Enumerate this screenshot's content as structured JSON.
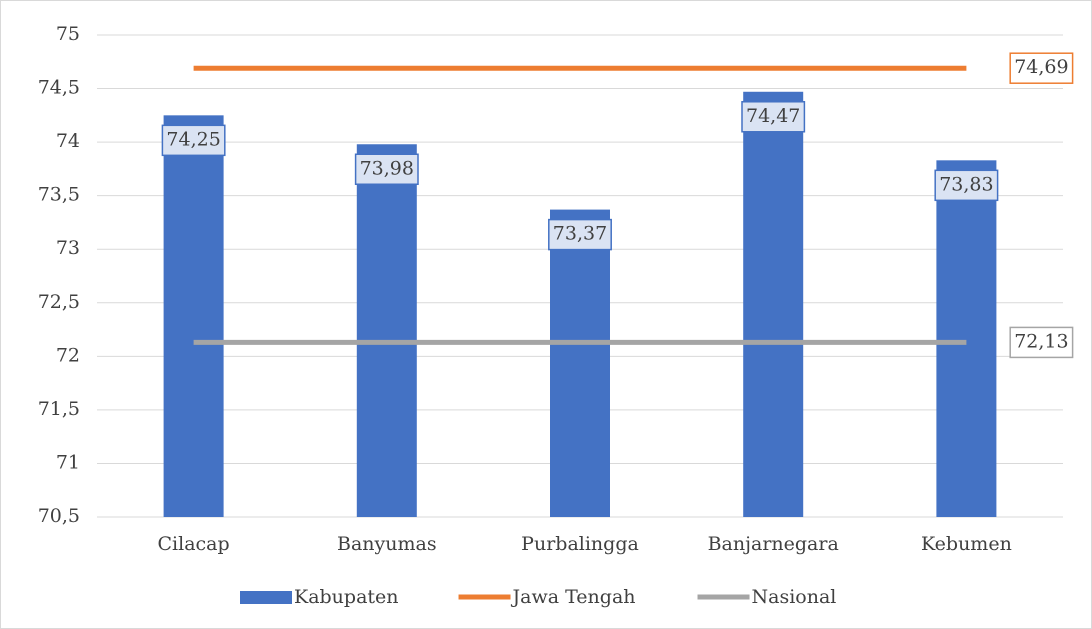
{
  "chart_data": {
    "type": "bar",
    "categories": [
      "Cilacap",
      "Banyumas",
      "Purbalingga",
      "Banjarnegara",
      "Kebumen"
    ],
    "series": [
      {
        "name": "Kabupaten",
        "type": "bar",
        "color": "#4472c4",
        "values": [
          74.25,
          73.98,
          73.37,
          74.47,
          73.83
        ],
        "value_labels": [
          "74,25",
          "73,98",
          "73,37",
          "74,47",
          "73,83"
        ]
      },
      {
        "name": "Jawa Tengah",
        "type": "line",
        "color": "#ed7d31",
        "values": [
          74.69,
          74.69,
          74.69,
          74.69,
          74.69
        ],
        "value_labels": [
          null,
          null,
          null,
          null,
          "74,69"
        ]
      },
      {
        "name": "Nasional",
        "type": "line",
        "color": "#a5a5a5",
        "values": [
          72.13,
          72.13,
          72.13,
          72.13,
          72.13
        ],
        "value_labels": [
          null,
          null,
          null,
          null,
          "72,13"
        ]
      }
    ],
    "ylim": [
      70.5,
      75
    ],
    "yticks": [
      {
        "value": 70.5,
        "label": "70,5"
      },
      71,
      {
        "value": 71.5,
        "label": "71,5"
      },
      72,
      {
        "value": 72.5,
        "label": "72,5"
      },
      73,
      {
        "value": 73.5,
        "label": "73,5"
      },
      74,
      {
        "value": 74.5,
        "label": "74,5"
      },
      75
    ],
    "grid": true,
    "legend": "bottom"
  }
}
